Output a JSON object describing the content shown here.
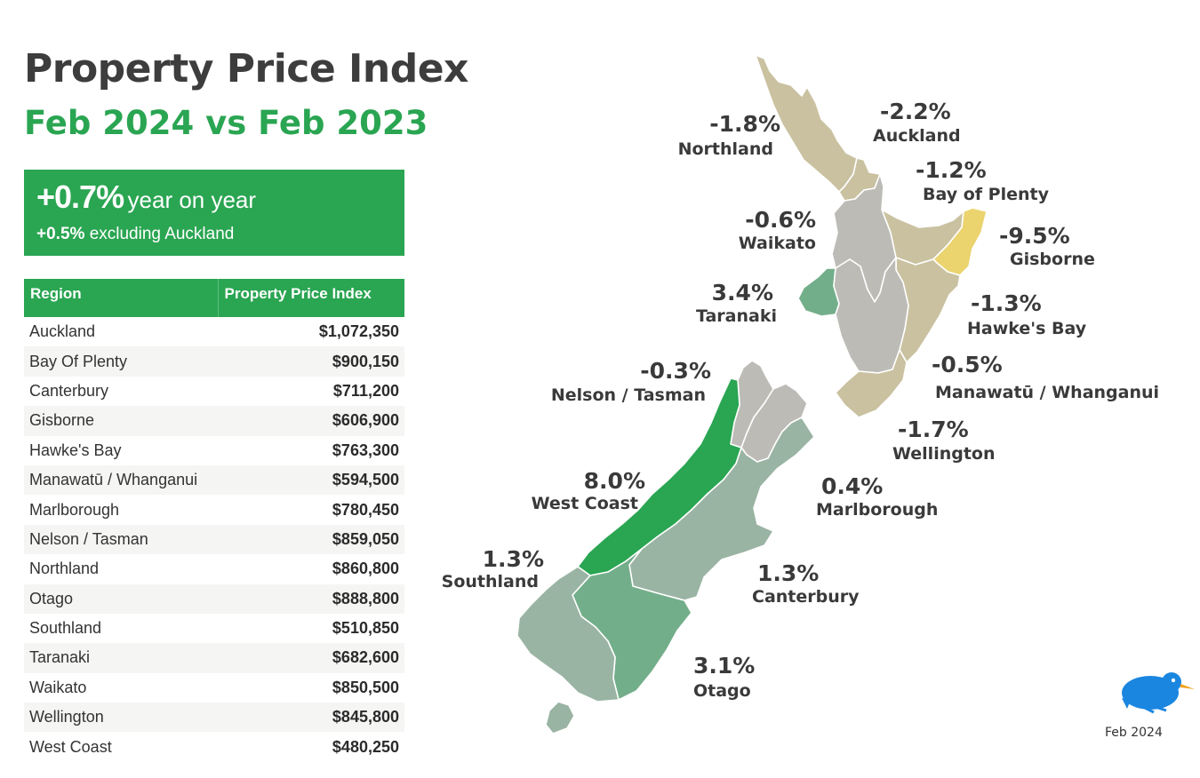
{
  "title": "Property Price Index",
  "subtitle": "Feb 2024 vs Feb 2023",
  "summary": {
    "headline_value": "+0.7%",
    "headline_text": "year on year",
    "sub_value": "+0.5%",
    "sub_text": "excluding Auckland"
  },
  "table": {
    "headers": [
      "Region",
      "Property Price Index"
    ],
    "rows": [
      {
        "region": "Auckland",
        "value": "$1,072,350"
      },
      {
        "region": "Bay Of Plenty",
        "value": "$900,150"
      },
      {
        "region": "Canterbury",
        "value": "$711,200"
      },
      {
        "region": "Gisborne",
        "value": "$606,900"
      },
      {
        "region": "Hawke's Bay",
        "value": "$763,300"
      },
      {
        "region": "Manawatū / Whanganui",
        "value": "$594,500"
      },
      {
        "region": "Marlborough",
        "value": "$780,450"
      },
      {
        "region": "Nelson / Tasman",
        "value": "$859,050"
      },
      {
        "region": "Northland",
        "value": "$860,800"
      },
      {
        "region": "Otago",
        "value": "$888,800"
      },
      {
        "region": "Southland",
        "value": "$510,850"
      },
      {
        "region": "Taranaki",
        "value": "$682,600"
      },
      {
        "region": "Waikato",
        "value": "$850,500"
      },
      {
        "region": "Wellington",
        "value": "$845,800"
      },
      {
        "region": "West Coast",
        "value": "$480,250"
      }
    ]
  },
  "map": {
    "labels": {
      "northland": {
        "pct": "-1.8%",
        "name": "Northland"
      },
      "auckland": {
        "pct": "-2.2%",
        "name": "Auckland"
      },
      "bay_of_plenty": {
        "pct": "-1.2%",
        "name": "Bay of Plenty"
      },
      "waikato": {
        "pct": "-0.6%",
        "name": "Waikato"
      },
      "gisborne": {
        "pct": "-9.5%",
        "name": "Gisborne"
      },
      "taranaki": {
        "pct": "3.4%",
        "name": "Taranaki"
      },
      "hawkes_bay": {
        "pct": "-1.3%",
        "name": "Hawke's Bay"
      },
      "nelson_tasman": {
        "pct": "-0.3%",
        "name": "Nelson / Tasman"
      },
      "manawatu": {
        "pct": "-0.5%",
        "name": "Manawatū / Whanganui"
      },
      "wellington": {
        "pct": "-1.7%",
        "name": "Wellington"
      },
      "west_coast": {
        "pct": "8.0%",
        "name": "West Coast"
      },
      "marlborough": {
        "pct": "0.4%",
        "name": "Marlborough"
      },
      "southland": {
        "pct": "1.3%",
        "name": "Southland"
      },
      "canterbury": {
        "pct": "1.3%",
        "name": "Canterbury"
      },
      "otago": {
        "pct": "3.1%",
        "name": "Otago"
      }
    },
    "colors": {
      "strong_positive": "#2aa552",
      "positive": "#73ae8a",
      "slight_positive": "#9ab4a3",
      "near_zero": "#bdbbb6",
      "negative": "#c9c1a0",
      "strong_negative": "#ebd36e"
    }
  },
  "footer": {
    "date": "Feb 2024"
  },
  "logo": {
    "icon": "kiwi-bird-icon"
  }
}
